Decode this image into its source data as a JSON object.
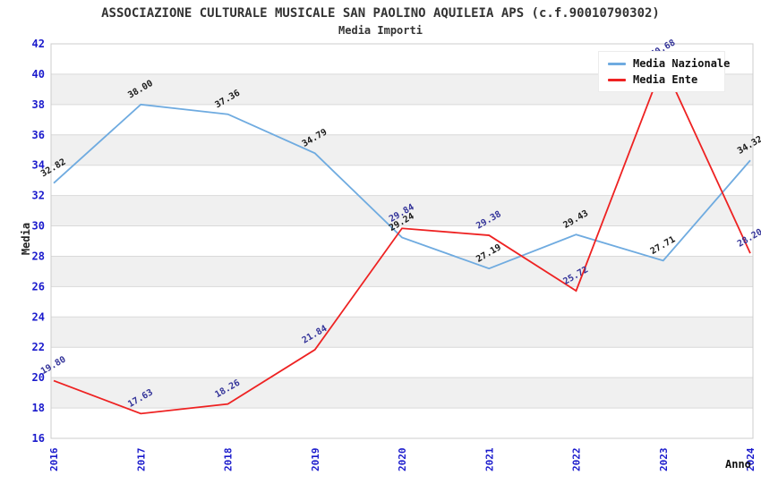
{
  "chart_data": {
    "type": "line",
    "title": "ASSOCIAZIONE CULTURALE MUSICALE SAN PAOLINO AQUILEIA APS (c.f.90010790302)",
    "subtitle": "Media Importi",
    "ylabel": "Media",
    "xlabel": "Anno",
    "categories": [
      "2016",
      "2017",
      "2018",
      "2019",
      "2020",
      "2021",
      "2022",
      "2023",
      "2024"
    ],
    "ylim": [
      16,
      42
    ],
    "ytick_step": 2,
    "grid": "horizontal",
    "legend_position": "top-right",
    "series": [
      {
        "name": "Media Nazionale",
        "color": "#6FABE0",
        "label_color": "#1a1a1a",
        "values": [
          32.82,
          38.0,
          37.36,
          34.79,
          29.24,
          27.19,
          29.43,
          27.71,
          34.32
        ]
      },
      {
        "name": "Media Ente",
        "color": "#EE2222",
        "label_color": "#333399",
        "values": [
          19.8,
          17.63,
          18.26,
          21.84,
          29.84,
          29.38,
          25.72,
          40.68,
          28.2
        ]
      }
    ],
    "colors": {
      "axis_ticks": "#1a1acc",
      "grid_line": "#d9d9d9",
      "band": "#f0f0f0",
      "plot_border": "#cccccc",
      "title_text": "#333333"
    }
  }
}
